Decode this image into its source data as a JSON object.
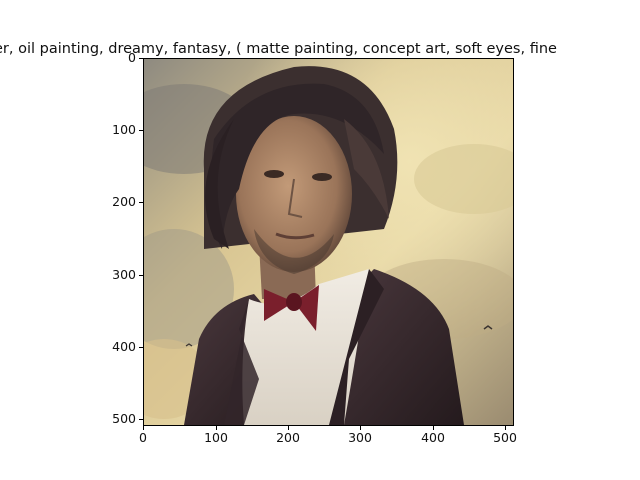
{
  "title": "er,  oil painting, dreamy, fantasy, ( matte painting, concept art, soft eyes, fine",
  "image": {
    "content": "portrait-painting",
    "colors": {
      "sky": "#c9b589",
      "sky_light": "#eadcaa",
      "cloud_grey": "#8d8a83",
      "hair": "#3b2f2f",
      "skin": "#b08a6b",
      "skin_shadow": "#6e5444",
      "jacket": "#3a2a2e",
      "shirt": "#ece6dc",
      "bowtie": "#7a1f2c"
    }
  },
  "axes": {
    "x_ticks": [
      "0",
      "100",
      "200",
      "300",
      "400",
      "500"
    ],
    "y_ticks": [
      "0",
      "100",
      "200",
      "300",
      "400",
      "500"
    ],
    "xlim": [
      0,
      512
    ],
    "ylim": [
      512,
      0
    ]
  }
}
